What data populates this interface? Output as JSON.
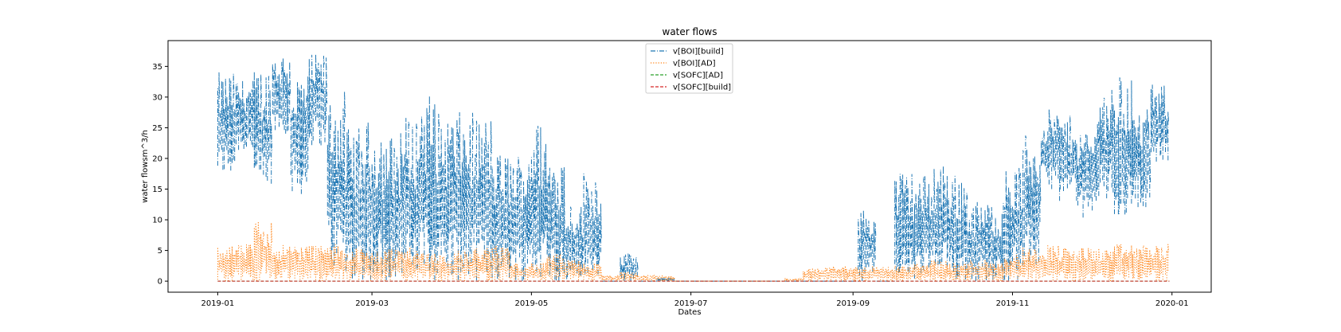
{
  "chart_data": {
    "type": "line",
    "title": "water flows",
    "xlabel": "Dates",
    "ylabel": "water flowsm^3/h",
    "xlim": [
      "2018-12-13",
      "2020-01-16"
    ],
    "ylim": [
      -1.8,
      39.2
    ],
    "x_ticks": [
      "2019-01",
      "2019-03",
      "2019-05",
      "2019-07",
      "2019-09",
      "2019-11",
      "2020-01"
    ],
    "y_ticks": [
      0,
      5,
      10,
      15,
      20,
      25,
      30,
      35
    ],
    "grid": false,
    "legend_position": "top-center",
    "sampling": "weekly envelope of an hourly series (min / max per week)",
    "series": [
      {
        "name": "v[BOI][build]",
        "color": "#1f77b4",
        "dash": "dashdot",
        "weeks": [
          "2019-01-01",
          "2019-01-08",
          "2019-01-15",
          "2019-01-22",
          "2019-01-29",
          "2019-02-05",
          "2019-02-12",
          "2019-02-19",
          "2019-02-26",
          "2019-03-05",
          "2019-03-12",
          "2019-03-19",
          "2019-03-26",
          "2019-04-02",
          "2019-04-09",
          "2019-04-16",
          "2019-04-23",
          "2019-04-30",
          "2019-05-07",
          "2019-05-14",
          "2019-05-21",
          "2019-05-28",
          "2019-06-04",
          "2019-06-11",
          "2019-06-18",
          "2019-06-25",
          "2019-07-02",
          "2019-07-09",
          "2019-07-16",
          "2019-07-23",
          "2019-07-30",
          "2019-08-06",
          "2019-08-13",
          "2019-08-20",
          "2019-08-27",
          "2019-09-03",
          "2019-09-10",
          "2019-09-17",
          "2019-09-24",
          "2019-10-01",
          "2019-10-08",
          "2019-10-15",
          "2019-10-22",
          "2019-10-29",
          "2019-11-05",
          "2019-11-12",
          "2019-11-19",
          "2019-11-26",
          "2019-12-03",
          "2019-12-10",
          "2019-12-17",
          "2019-12-24"
        ],
        "max": [
          34,
          33,
          35,
          37.5,
          34,
          37,
          31,
          25,
          26,
          24,
          27,
          31,
          27.5,
          27.5,
          27,
          21,
          21,
          26,
          21,
          13,
          18,
          0,
          4.5,
          0,
          0.5,
          0,
          0,
          0,
          0,
          0,
          0,
          0,
          0,
          0,
          0,
          12,
          0,
          18,
          17.5,
          20,
          17.5,
          13,
          13,
          19,
          24,
          28,
          27,
          25,
          31.5,
          34,
          28,
          32
        ],
        "min": [
          17,
          21,
          14,
          24,
          14,
          22,
          2,
          0,
          0,
          0,
          0,
          0,
          0,
          0,
          0,
          0,
          0,
          0,
          0,
          0,
          0,
          0,
          0,
          0,
          0,
          0,
          0,
          0,
          0,
          0,
          0,
          0,
          0,
          0,
          0,
          0,
          0,
          0,
          0,
          0,
          0,
          0,
          0,
          0,
          2,
          15,
          13,
          10,
          13,
          10,
          12,
          19
        ]
      },
      {
        "name": "v[BOI][AD]",
        "color": "#ff7f0e",
        "dash": "dotted",
        "weeks": [
          "2019-01-01",
          "2019-01-08",
          "2019-01-15",
          "2019-01-22",
          "2019-01-29",
          "2019-02-05",
          "2019-02-12",
          "2019-02-19",
          "2019-02-26",
          "2019-03-05",
          "2019-03-12",
          "2019-03-19",
          "2019-03-26",
          "2019-04-02",
          "2019-04-09",
          "2019-04-16",
          "2019-04-23",
          "2019-04-30",
          "2019-05-07",
          "2019-05-14",
          "2019-05-21",
          "2019-05-28",
          "2019-06-04",
          "2019-06-11",
          "2019-06-18",
          "2019-06-25",
          "2019-07-02",
          "2019-07-09",
          "2019-07-16",
          "2019-07-23",
          "2019-07-30",
          "2019-08-06",
          "2019-08-13",
          "2019-08-20",
          "2019-08-27",
          "2019-09-03",
          "2019-09-10",
          "2019-09-17",
          "2019-09-24",
          "2019-10-01",
          "2019-10-08",
          "2019-10-15",
          "2019-10-22",
          "2019-10-29",
          "2019-11-05",
          "2019-11-12",
          "2019-11-19",
          "2019-11-26",
          "2019-12-03",
          "2019-12-10",
          "2019-12-17",
          "2019-12-24"
        ],
        "max": [
          6,
          6,
          10,
          6,
          6,
          6,
          6,
          5.5,
          5,
          5.5,
          5.5,
          5,
          4.5,
          5,
          5.5,
          6,
          3,
          3,
          4.5,
          3.5,
          3,
          1,
          1.5,
          1,
          1,
          0,
          0,
          0,
          0,
          0,
          0,
          0.5,
          2,
          2.5,
          2.5,
          2.5,
          2.5,
          2.5,
          3,
          3.5,
          3,
          3.5,
          3.5,
          4.5,
          5.5,
          6,
          5.5,
          5.5,
          5.5,
          6,
          6,
          6
        ],
        "min": [
          0,
          0,
          0,
          0,
          0,
          0,
          0,
          0,
          0,
          0,
          0,
          0,
          0,
          0,
          0,
          0,
          0,
          0,
          0,
          0,
          0,
          0,
          0,
          0,
          0,
          0,
          0,
          0,
          0,
          0,
          0,
          0,
          0,
          0,
          0,
          0,
          0,
          0,
          0,
          0,
          0,
          0,
          0,
          0,
          0,
          0,
          0,
          0,
          0,
          0,
          0,
          0
        ]
      },
      {
        "name": "v[SOFC][AD]",
        "color": "#2ca02c",
        "dash": "dashed",
        "range": [
          "2019-01-01",
          "2019-12-31"
        ],
        "constant": 0
      },
      {
        "name": "v[SOFC][build]",
        "color": "#d62728",
        "dash": "dashed",
        "range": [
          "2019-01-01",
          "2019-12-31"
        ],
        "constant": 0
      }
    ]
  }
}
